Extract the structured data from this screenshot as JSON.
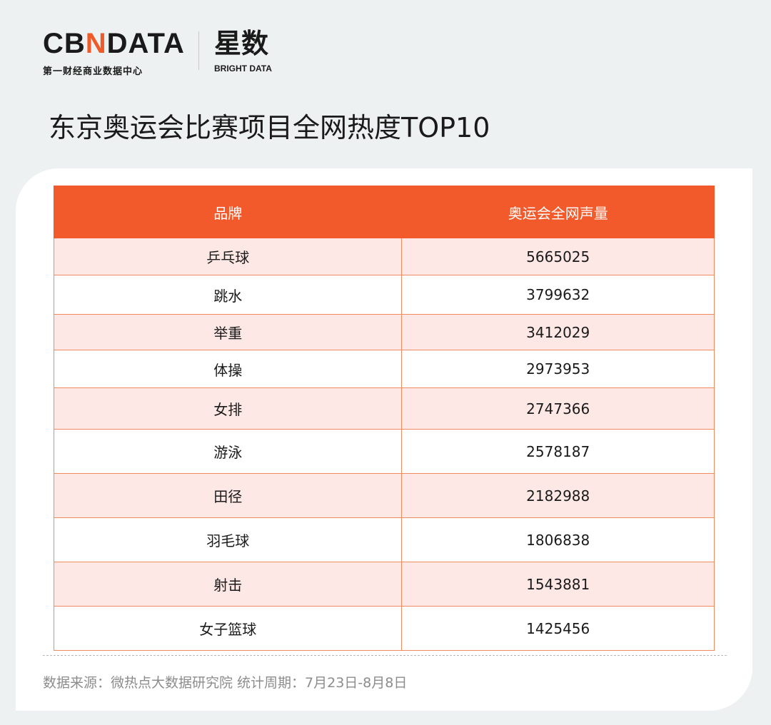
{
  "brand": {
    "cbn_logo_left": "CB",
    "cbn_logo_accent": "N",
    "cbn_logo_right": "DATA",
    "cbn_subtitle": "第一财经商业数据中心",
    "xingshu_logo": "星数",
    "xingshu_subtitle": "BRIGHT DATA"
  },
  "title": "东京奥运会比赛项目全网热度TOP10",
  "chart_data": {
    "type": "table",
    "columns": [
      "品牌",
      "奥运会全网声量"
    ],
    "rows": [
      {
        "name": "乒乓球",
        "value": "5665025"
      },
      {
        "name": "跳水",
        "value": "3799632"
      },
      {
        "name": "举重",
        "value": "3412029"
      },
      {
        "name": "体操",
        "value": "2973953"
      },
      {
        "name": "女排",
        "value": "2747366"
      },
      {
        "name": "游泳",
        "value": "2578187"
      },
      {
        "name": "田径",
        "value": "2182988"
      },
      {
        "name": "羽毛球",
        "value": "1806838"
      },
      {
        "name": "射击",
        "value": "1543881"
      },
      {
        "name": "女子篮球",
        "value": "1425456"
      }
    ]
  },
  "footer": "数据来源：微热点大数据研究院  统计周期：7月23日-8月8日",
  "colors": {
    "header_bg": "#f25a2b",
    "odd_row_bg": "#fde8e5",
    "border": "#f08a60"
  }
}
